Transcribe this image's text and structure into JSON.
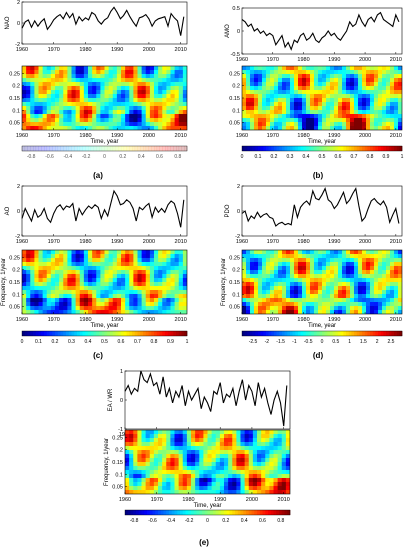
{
  "chart_data": [
    {
      "panel_label": "(a)",
      "series_plot": {
        "type": "line",
        "ylabel": "NAO",
        "xlim": [
          1960,
          2012
        ],
        "ylim": [
          -2,
          2
        ],
        "xticks": [
          "1960",
          "1970",
          "1980",
          "1990",
          "2000",
          "2010"
        ],
        "yticks": [
          "-2",
          "0",
          "2"
        ],
        "x": [
          1960,
          1961,
          1962,
          1963,
          1964,
          1965,
          1966,
          1967,
          1968,
          1969,
          1970,
          1971,
          1972,
          1973,
          1974,
          1975,
          1976,
          1977,
          1978,
          1979,
          1980,
          1981,
          1982,
          1983,
          1984,
          1985,
          1986,
          1987,
          1988,
          1989,
          1990,
          1991,
          1992,
          1993,
          1994,
          1995,
          1996,
          1997,
          1998,
          1999,
          2000,
          2001,
          2002,
          2003,
          2004,
          2005,
          2006,
          2007,
          2008,
          2009,
          2010,
          2011
        ],
        "values": [
          -0.5,
          0.1,
          0.3,
          -0.4,
          0.2,
          -0.3,
          0.1,
          0.4,
          -0.6,
          -0.2,
          0.3,
          0.6,
          0.8,
          0.4,
          1.0,
          0.5,
          0.9,
          -0.1,
          0.6,
          0.2,
          0.5,
          0.3,
          1.0,
          0.8,
          0.2,
          -0.1,
          0.3,
          0.5,
          1.1,
          1.5,
          1.0,
          0.4,
          0.7,
          1.2,
          0.6,
          0.1,
          -0.3,
          0.5,
          0.6,
          0.8,
          0.4,
          -0.3,
          0.2,
          0.4,
          0.5,
          0.6,
          -0.3,
          0.9,
          0.5,
          0.2,
          -1.2,
          0.6
        ]
      },
      "spectrum": {
        "type": "heatmap",
        "xlabel": "Time, year",
        "xticks": [
          "1960",
          "1970",
          "1980",
          "1990",
          "2000",
          "2010"
        ],
        "yticks": [
          "0.25",
          "0.2",
          "0.15",
          "0.1",
          "0.05"
        ],
        "ylabel": ""
      },
      "colorbar": {
        "ticks": [
          "-0.8",
          "-0.6",
          "-0.4",
          "-0.2",
          "0",
          "0.2",
          "0.4",
          "0.6",
          "0.8"
        ],
        "range": [
          -0.9,
          0.9
        ],
        "style": "faint"
      }
    },
    {
      "panel_label": "(b)",
      "series_plot": {
        "type": "line",
        "ylabel": "AMO",
        "xlim": [
          1960,
          2012
        ],
        "ylim": [
          -0.5,
          0.5
        ],
        "xticks": [
          "1960",
          "1970",
          "1980",
          "1990",
          "2000",
          "2010"
        ],
        "yticks": [
          "-0.5",
          "0",
          "0.5"
        ],
        "x": [
          1960,
          1961,
          1962,
          1963,
          1964,
          1965,
          1966,
          1967,
          1968,
          1969,
          1970,
          1971,
          1972,
          1973,
          1974,
          1975,
          1976,
          1977,
          1978,
          1979,
          1980,
          1981,
          1982,
          1983,
          1984,
          1985,
          1986,
          1987,
          1988,
          1989,
          1990,
          1991,
          1992,
          1993,
          1994,
          1995,
          1996,
          1997,
          1998,
          1999,
          2000,
          2001,
          2002,
          2003,
          2004,
          2005,
          2006,
          2007,
          2008,
          2009,
          2010,
          2011
        ],
        "values": [
          0.25,
          0.2,
          0.1,
          0.15,
          0.0,
          0.05,
          -0.05,
          0.0,
          -0.1,
          -0.05,
          -0.1,
          -0.3,
          -0.2,
          -0.1,
          -0.35,
          -0.25,
          -0.4,
          -0.2,
          -0.25,
          -0.1,
          -0.05,
          -0.2,
          -0.15,
          -0.05,
          -0.2,
          -0.25,
          -0.15,
          -0.1,
          0.0,
          -0.1,
          -0.05,
          -0.15,
          -0.2,
          -0.1,
          0.0,
          0.2,
          0.1,
          0.15,
          0.35,
          0.2,
          0.1,
          0.25,
          0.3,
          0.2,
          0.35,
          0.4,
          0.25,
          0.2,
          0.15,
          0.1,
          0.35,
          0.2
        ]
      },
      "spectrum": {
        "type": "heatmap",
        "xlabel": "Time, year",
        "xticks": [
          "1960",
          "1970",
          "1980",
          "1990",
          "2000",
          "2010"
        ],
        "yticks": [
          "0.25",
          "0.2",
          "0.15",
          "0.1",
          "0.05"
        ],
        "ylabel": ""
      },
      "colorbar": {
        "ticks": [
          "0",
          "0.1",
          "0.2",
          "0.3",
          "0.4",
          "0.5",
          "0.6",
          "0.7",
          "0.8",
          "0.9",
          "1"
        ],
        "range": [
          0,
          1
        ],
        "style": "solid"
      }
    },
    {
      "panel_label": "(c)",
      "series_plot": {
        "type": "line",
        "ylabel": "AO",
        "xlim": [
          1960,
          2012
        ],
        "ylim": [
          -2,
          2
        ],
        "xticks": [
          "1960",
          "1970",
          "1980",
          "1990",
          "2000",
          "2010"
        ],
        "yticks": [
          "-2",
          "0",
          "2"
        ],
        "x": [
          1960,
          1961,
          1962,
          1963,
          1964,
          1965,
          1966,
          1967,
          1968,
          1969,
          1970,
          1971,
          1972,
          1973,
          1974,
          1975,
          1976,
          1977,
          1978,
          1979,
          1980,
          1981,
          1982,
          1983,
          1984,
          1985,
          1986,
          1987,
          1988,
          1989,
          1990,
          1991,
          1992,
          1993,
          1994,
          1995,
          1996,
          1997,
          1998,
          1999,
          2000,
          2001,
          2002,
          2003,
          2004,
          2005,
          2006,
          2007,
          2008,
          2009,
          2010,
          2011
        ],
        "values": [
          -0.6,
          0.2,
          -0.3,
          -0.8,
          0.1,
          -0.5,
          -0.3,
          0.2,
          -0.6,
          -0.9,
          -0.2,
          0.3,
          0.5,
          0.1,
          0.4,
          0.3,
          0.6,
          -0.8,
          0.2,
          -0.3,
          0.1,
          0.4,
          0.2,
          0.5,
          0.3,
          -0.6,
          0.1,
          -0.4,
          0.6,
          1.6,
          1.2,
          0.5,
          0.6,
          0.9,
          0.7,
          0.2,
          -0.8,
          0.3,
          0.1,
          0.4,
          0.6,
          -0.5,
          0.3,
          -0.1,
          0.2,
          -0.1,
          0.5,
          0.8,
          0.6,
          -0.2,
          -1.3,
          0.9
        ]
      },
      "spectrum": {
        "type": "heatmap",
        "xlabel": "Time, year",
        "xticks": [
          "1960",
          "1970",
          "1980",
          "1990",
          "2000",
          "2010"
        ],
        "yticks": [
          "0.25",
          "0.2",
          "0.15",
          "0.1",
          "0.05"
        ],
        "ylabel": "Frequency, 1/year"
      },
      "colorbar": {
        "ticks": [
          "0",
          "0.1",
          "0.2",
          "0.3",
          "0.4",
          "0.5",
          "0.6",
          "0.7",
          "0.8",
          "0.9",
          "1"
        ],
        "range": [
          0,
          1
        ],
        "style": "solid"
      }
    },
    {
      "panel_label": "(d)",
      "series_plot": {
        "type": "line",
        "ylabel": "PDO",
        "xlim": [
          1960,
          2012
        ],
        "ylim": [
          -2,
          2
        ],
        "xticks": [
          "1960",
          "1970",
          "1980",
          "1990",
          "2000",
          "2010"
        ],
        "yticks": [
          "-2",
          "0",
          "2"
        ],
        "x": [
          1960,
          1961,
          1962,
          1963,
          1964,
          1965,
          1966,
          1967,
          1968,
          1969,
          1970,
          1971,
          1972,
          1973,
          1974,
          1975,
          1976,
          1977,
          1978,
          1979,
          1980,
          1981,
          1982,
          1983,
          1984,
          1985,
          1986,
          1987,
          1988,
          1989,
          1990,
          1991,
          1992,
          1993,
          1994,
          1995,
          1996,
          1997,
          1998,
          1999,
          2000,
          2001,
          2002,
          2003,
          2004,
          2005,
          2006,
          2007,
          2008,
          2009,
          2010,
          2011
        ],
        "values": [
          -0.2,
          0.0,
          -0.8,
          -0.4,
          -0.6,
          -0.1,
          -0.5,
          -0.3,
          -0.2,
          -0.5,
          -0.6,
          -1.2,
          -1.0,
          -0.9,
          -1.1,
          -1.0,
          -1.1,
          0.5,
          -0.5,
          0.3,
          0.6,
          0.8,
          0.5,
          1.6,
          1.0,
          0.9,
          1.3,
          1.8,
          0.9,
          0.7,
          0.2,
          0.5,
          1.0,
          1.5,
          0.6,
          0.9,
          1.4,
          1.8,
          0.4,
          -0.8,
          -0.5,
          0.2,
          0.8,
          1.0,
          0.7,
          0.5,
          0.8,
          0.3,
          -0.9,
          -0.3,
          0.2,
          -1.0
        ]
      },
      "spectrum": {
        "type": "heatmap",
        "xlabel": "Time, year",
        "xticks": [
          "1960",
          "1970",
          "1980",
          "1990",
          "2000",
          "2010"
        ],
        "yticks": [
          "0.25",
          "0.2",
          "0.15",
          "0.1",
          "0.05"
        ],
        "ylabel": "Frequency, 1/year"
      },
      "colorbar": {
        "ticks": [
          "-2.5",
          "-2",
          "-1.5",
          "-1",
          "-0.5",
          "0",
          "0.5",
          "1",
          "1.5",
          "2",
          "2.5"
        ],
        "range": [
          -2.9,
          2.9
        ],
        "style": "solid"
      }
    },
    {
      "panel_label": "(e)",
      "series_plot": {
        "type": "line",
        "ylabel": "EA / WR",
        "xlim": [
          1960,
          2012
        ],
        "ylim": [
          -1,
          1
        ],
        "xticks": [
          "1960",
          "1970",
          "1980",
          "1990",
          "2000",
          "2010"
        ],
        "yticks": [
          "-1",
          "0",
          "1"
        ],
        "x": [
          1960,
          1961,
          1962,
          1963,
          1964,
          1965,
          1966,
          1967,
          1968,
          1969,
          1970,
          1971,
          1972,
          1973,
          1974,
          1975,
          1976,
          1977,
          1978,
          1979,
          1980,
          1981,
          1982,
          1983,
          1984,
          1985,
          1986,
          1987,
          1988,
          1989,
          1990,
          1991,
          1992,
          1993,
          1994,
          1995,
          1996,
          1997,
          1998,
          1999,
          2000,
          2001,
          2002,
          2003,
          2004,
          2005,
          2006,
          2007,
          2008,
          2009,
          2010,
          2011
        ],
        "values": [
          0.3,
          0.5,
          0.2,
          0.4,
          0.3,
          1.0,
          0.7,
          0.6,
          0.9,
          0.5,
          0.6,
          0.2,
          0.8,
          0.1,
          0.4,
          -0.1,
          0.3,
          0.1,
          0.5,
          -0.2,
          0.3,
          0.0,
          0.2,
          0.4,
          -0.3,
          0.1,
          -0.1,
          -0.4,
          0.3,
          0.2,
          0.6,
          -0.1,
          0.2,
          0.1,
          0.4,
          -0.2,
          0.3,
          0.7,
          0.0,
          0.5,
          0.3,
          -0.2,
          0.6,
          0.1,
          0.4,
          -0.1,
          -0.5,
          0.0,
          0.3,
          -0.1,
          -0.9,
          0.5
        ]
      },
      "spectrum": {
        "type": "heatmap",
        "xlabel": "Time, year",
        "xticks": [
          "1960",
          "1970",
          "1980",
          "1990",
          "2000",
          "2010"
        ],
        "yticks": [
          "0.25",
          "0.2",
          "0.15",
          "0.1",
          "0.05"
        ],
        "ylabel": "Frequency, 1/year"
      },
      "colorbar": {
        "ticks": [
          "-0.8",
          "-0.6",
          "-0.4",
          "-0.2",
          "0",
          "0.2",
          "0.4",
          "0.6",
          "0.8"
        ],
        "range": [
          -0.9,
          0.9
        ],
        "style": "solid"
      }
    }
  ],
  "colors": {
    "line": "#000000",
    "colormap": [
      "#00007f",
      "#0000ff",
      "#007fff",
      "#00ffff",
      "#7fff7f",
      "#ffff00",
      "#ff7f00",
      "#ff0000",
      "#7f0000"
    ]
  }
}
